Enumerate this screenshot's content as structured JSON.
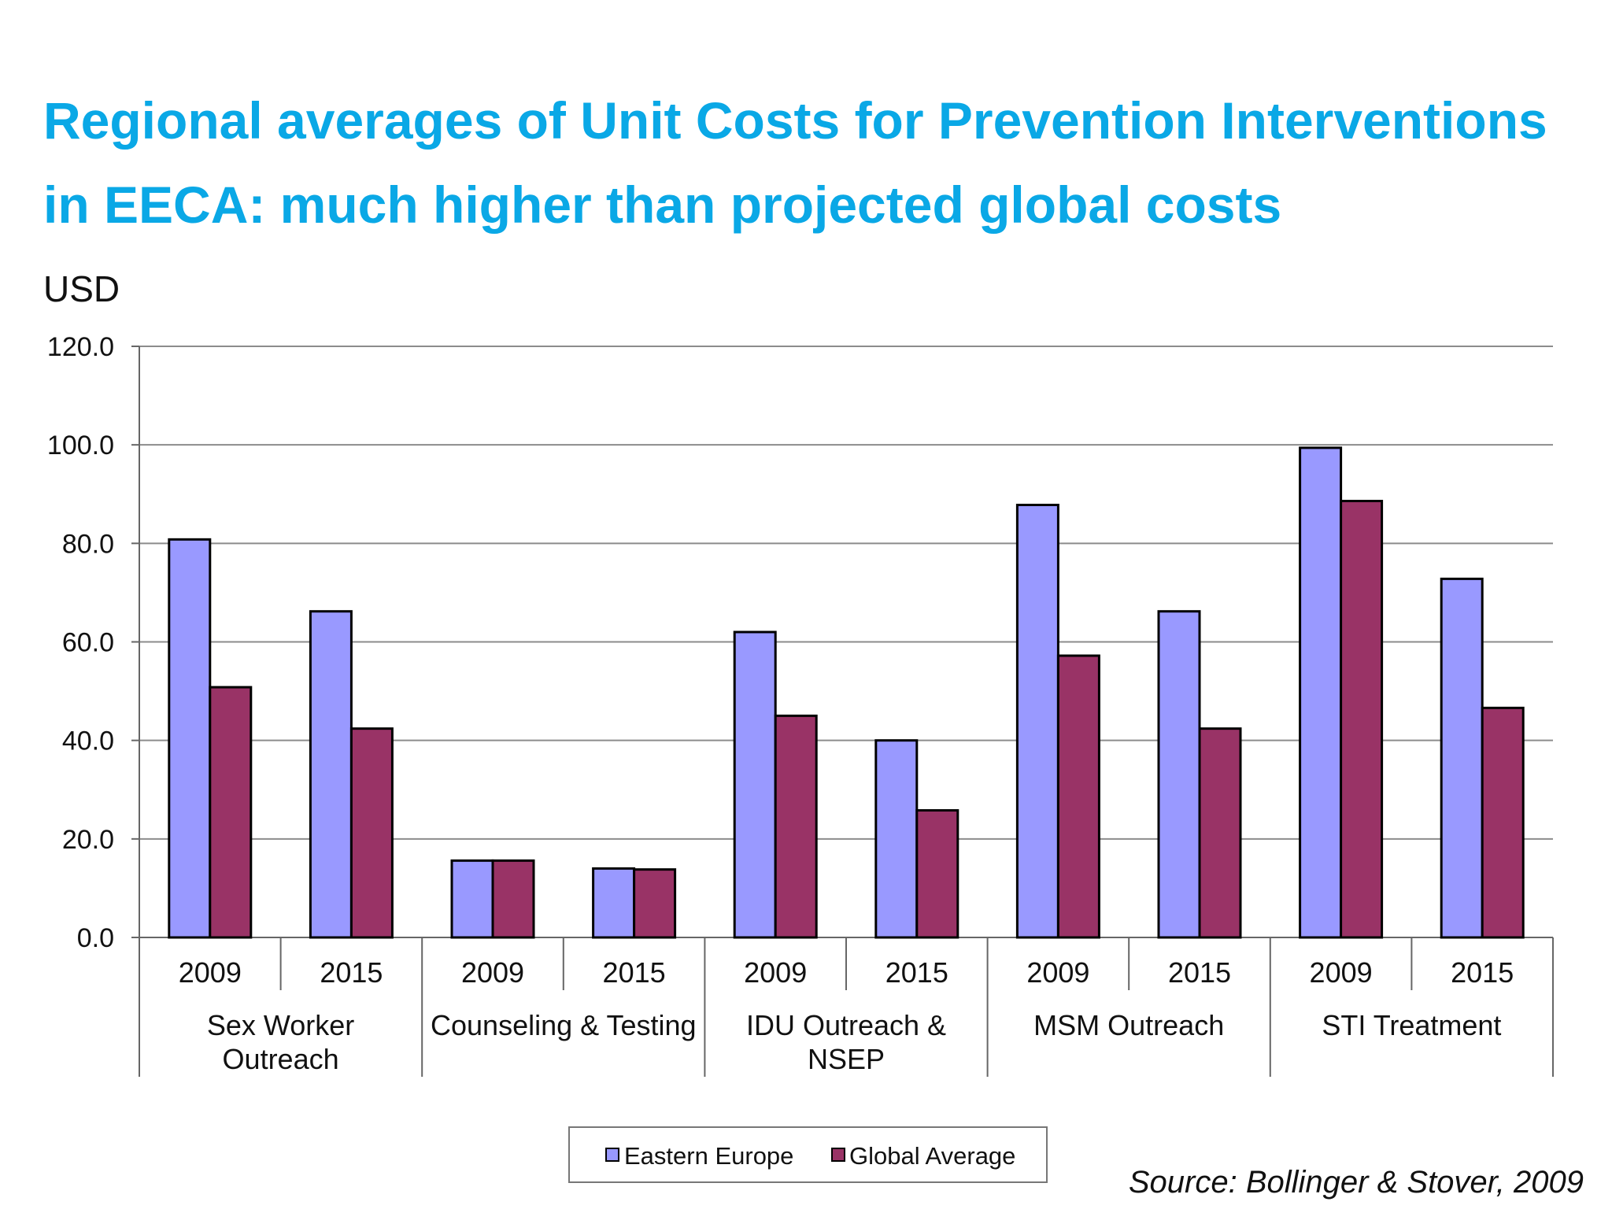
{
  "title": {
    "line1": "Regional averages of Unit Costs for Prevention Interventions",
    "line2": "in EECA: much higher than projected global costs"
  },
  "source": "Source: Bollinger & Stover, 2009",
  "colors": {
    "eastern_europe": "#9999ff",
    "global_average": "#993366",
    "title": "#0aa8e6"
  },
  "chart_data": {
    "type": "bar",
    "title": "",
    "ylabel": "USD",
    "xlabel": "",
    "ylim": [
      0,
      120
    ],
    "yticks": [
      "0.0",
      "20.0",
      "40.0",
      "60.0",
      "80.0",
      "100.0",
      "120.0"
    ],
    "groups": [
      {
        "label": [
          "Sex Worker",
          "Outreach"
        ],
        "years": [
          "2009",
          "2015"
        ]
      },
      {
        "label": [
          "Counseling & Testing"
        ],
        "years": [
          "2009",
          "2015"
        ]
      },
      {
        "label": [
          "IDU Outreach &",
          "NSEP"
        ],
        "years": [
          "2009",
          "2015"
        ]
      },
      {
        "label": [
          "MSM Outreach"
        ],
        "years": [
          "2009",
          "2015"
        ]
      },
      {
        "label": [
          "STI Treatment"
        ],
        "years": [
          "2009",
          "2015"
        ]
      }
    ],
    "series": [
      {
        "name": "Eastern Europe",
        "color": "#9999ff",
        "values": [
          80.8,
          66.2,
          15.6,
          14.0,
          62.0,
          40.0,
          87.8,
          66.2,
          99.4,
          72.8
        ]
      },
      {
        "name": "Global Average",
        "color": "#993366",
        "values": [
          50.8,
          42.4,
          15.6,
          13.8,
          45.0,
          25.8,
          57.2,
          42.4,
          88.6,
          46.6
        ]
      }
    ],
    "grid": true,
    "legend": "bottom-center"
  }
}
